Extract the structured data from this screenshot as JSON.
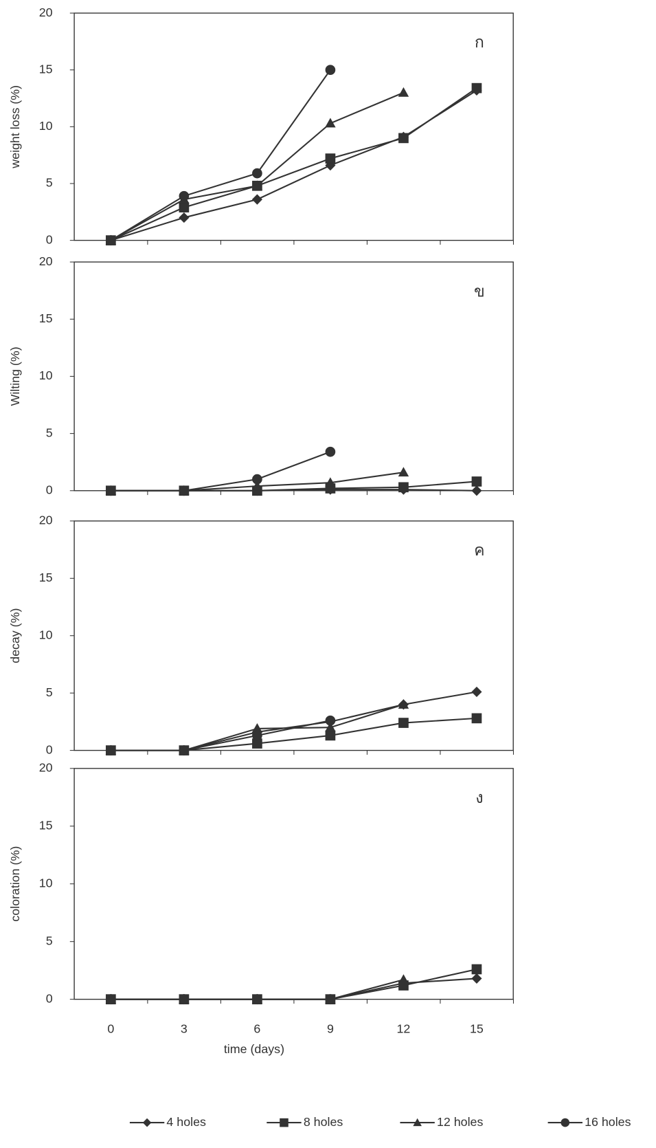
{
  "chart_data": [
    {
      "type": "line",
      "ylabel": "weight  loss (%)",
      "panel_label": "ก",
      "x": [
        0,
        3,
        6,
        9,
        12,
        15
      ],
      "xlim": [
        -1.5,
        16.5
      ],
      "xticks": [
        0,
        3,
        6,
        9,
        12,
        15
      ],
      "ylim": [
        0,
        20
      ],
      "yticks": [
        0,
        5,
        10,
        15,
        20
      ],
      "series": [
        {
          "color": "#333333",
          "marker": "diamond",
          "values": [
            0,
            2.0,
            3.6,
            6.6,
            9.1,
            13.2
          ]
        },
        {
          "color": "#333333",
          "marker": "square",
          "values": [
            0,
            2.9,
            4.8,
            7.2,
            9.0,
            13.4
          ]
        },
        {
          "color": "#333333",
          "marker": "triangle",
          "values": [
            0,
            3.6,
            4.8,
            10.3,
            13.0,
            null
          ]
        },
        {
          "color": "#333333",
          "marker": "circle",
          "values": [
            0,
            3.9,
            5.9,
            15.0,
            null,
            null
          ]
        }
      ]
    },
    {
      "type": "line",
      "ylabel": "Wilting (%)",
      "panel_label": "ข",
      "x": [
        0,
        3,
        6,
        9,
        12,
        15
      ],
      "xlim": [
        -1.5,
        16.5
      ],
      "xticks": [
        0,
        3,
        6,
        9,
        12,
        15
      ],
      "ylim": [
        0,
        20
      ],
      "yticks": [
        0,
        5,
        10,
        15,
        20
      ],
      "series": [
        {
          "color": "#333333",
          "marker": "diamond",
          "values": [
            0,
            0,
            0,
            0.1,
            0.1,
            0
          ]
        },
        {
          "color": "#333333",
          "marker": "square",
          "values": [
            0,
            0,
            0,
            0.2,
            0.3,
            0.8
          ]
        },
        {
          "color": "#333333",
          "marker": "triangle",
          "values": [
            0,
            0,
            0.4,
            0.7,
            1.6,
            null
          ]
        },
        {
          "color": "#333333",
          "marker": "circle",
          "values": [
            0,
            0,
            1.0,
            3.4,
            null,
            null
          ]
        }
      ]
    },
    {
      "type": "line",
      "ylabel": "decay (%)",
      "panel_label": "ค",
      "x": [
        0,
        3,
        6,
        9,
        12,
        15
      ],
      "xlim": [
        -1.5,
        16.5
      ],
      "xticks": [
        0,
        3,
        6,
        9,
        12,
        15
      ],
      "ylim": [
        0,
        20
      ],
      "yticks": [
        0,
        5,
        10,
        15,
        20
      ],
      "series": [
        {
          "color": "#333333",
          "marker": "diamond",
          "values": [
            0,
            0,
            1.6,
            2.5,
            4.0,
            5.1
          ]
        },
        {
          "color": "#333333",
          "marker": "square",
          "values": [
            0,
            0,
            0.6,
            1.3,
            2.4,
            2.8
          ]
        },
        {
          "color": "#333333",
          "marker": "triangle",
          "values": [
            0,
            0,
            1.9,
            2.0,
            4.0,
            null
          ]
        },
        {
          "color": "#333333",
          "marker": "circle",
          "values": [
            0,
            0,
            1.3,
            2.6,
            null,
            null
          ]
        }
      ]
    },
    {
      "type": "line",
      "ylabel": "coloration (%)",
      "panel_label": "ง",
      "xlabel": "time (days)",
      "x": [
        0,
        3,
        6,
        9,
        12,
        15
      ],
      "xlim": [
        -1.5,
        16.5
      ],
      "xticks": [
        0,
        3,
        6,
        9,
        12,
        15
      ],
      "ylim": [
        0,
        20
      ],
      "yticks": [
        0,
        5,
        10,
        15,
        20
      ],
      "series": [
        {
          "name": "4 holes",
          "color": "#333333",
          "marker": "diamond",
          "values": [
            0,
            0,
            0,
            0,
            1.4,
            1.8
          ]
        },
        {
          "name": "8 holes",
          "color": "#333333",
          "marker": "square",
          "values": [
            0,
            0,
            0,
            0,
            1.2,
            2.6
          ]
        },
        {
          "name": "12 holes",
          "color": "#333333",
          "marker": "triangle",
          "values": [
            0,
            0,
            0,
            0,
            1.7,
            null
          ]
        },
        {
          "name": "16 holes",
          "color": "#333333",
          "marker": "circle",
          "values": [
            0,
            0,
            0,
            0,
            null,
            null
          ]
        }
      ]
    }
  ]
}
